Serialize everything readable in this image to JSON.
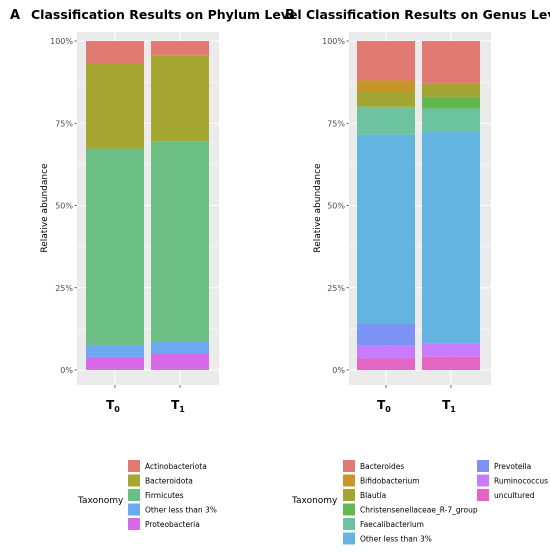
{
  "chart_data": [
    {
      "type": "bar",
      "stacked": true,
      "panel_label": "A",
      "title": "Classification Results on Phylum Level",
      "ylabel": "Relative abundance",
      "xlabel": "",
      "ylim": [
        0,
        100
      ],
      "yticks": [
        "0%",
        "25%",
        "50%",
        "75%",
        "100%"
      ],
      "categories": [
        {
          "base": "T",
          "sub": "0"
        },
        {
          "base": "T",
          "sub": "1"
        }
      ],
      "legend_title": "Taxonomy",
      "series": [
        {
          "name": "Proteobacteria",
          "color": "#D869E8",
          "values": [
            4.0,
            5.0
          ]
        },
        {
          "name": "Other less than 3%",
          "color": "#6DA8F2",
          "values": [
            3.5,
            3.5
          ]
        },
        {
          "name": "Firmicutes",
          "color": "#6CBF84",
          "values": [
            59.8,
            61.0
          ]
        },
        {
          "name": "Bacteroidota",
          "color": "#A6A632",
          "values": [
            26.0,
            26.0
          ]
        },
        {
          "name": "Actinobacteriota",
          "color": "#E07A72",
          "values": [
            6.7,
            4.5
          ]
        }
      ],
      "legend_order": [
        "Actinobacteriota",
        "Bacteroidota",
        "Firmicutes",
        "Other less than 3%",
        "Proteobacteria"
      ]
    },
    {
      "type": "bar",
      "stacked": true,
      "panel_label": "B",
      "title": "Classification Results on Genus Level",
      "ylabel": "Relative abundance",
      "xlabel": "",
      "ylim": [
        0,
        100
      ],
      "yticks": [
        "0%",
        "25%",
        "50%",
        "75%",
        "100%"
      ],
      "categories": [
        {
          "base": "T",
          "sub": "0"
        },
        {
          "base": "T",
          "sub": "1"
        }
      ],
      "legend_title": "Taxonomy",
      "series": [
        {
          "name": "uncultured",
          "color": "#E367C2",
          "values": [
            3.5,
            4.0
          ]
        },
        {
          "name": "Ruminococcus",
          "color": "#C77CFF",
          "values": [
            4.0,
            4.0
          ]
        },
        {
          "name": "Prevotella",
          "color": "#7B93F5",
          "values": [
            6.5,
            0
          ]
        },
        {
          "name": "Other less than 3%",
          "color": "#63B4E0",
          "values": [
            57.5,
            64.5
          ]
        },
        {
          "name": "Faecalibacterium",
          "color": "#6BC3A0",
          "values": [
            8.5,
            7.0
          ]
        },
        {
          "name": "Christensenellaceae_R-7_group",
          "color": "#62B84F",
          "values": [
            0,
            3.5
          ]
        },
        {
          "name": "Blautia",
          "color": "#A3A533",
          "values": [
            4.5,
            4.0
          ]
        },
        {
          "name": "Bifidobacterium",
          "color": "#C6962B",
          "values": [
            3.5,
            0
          ]
        },
        {
          "name": "Bacteroides",
          "color": "#E07A72",
          "values": [
            12.0,
            13.0
          ]
        }
      ],
      "legend_order": [
        "Bacteroides",
        "Bifidobacterium",
        "Blautia",
        "Christensenellaceae_R-7_group",
        "Faecalibacterium",
        "Other less than 3%",
        "Prevotella",
        "Ruminococcus",
        "uncultured"
      ]
    }
  ]
}
